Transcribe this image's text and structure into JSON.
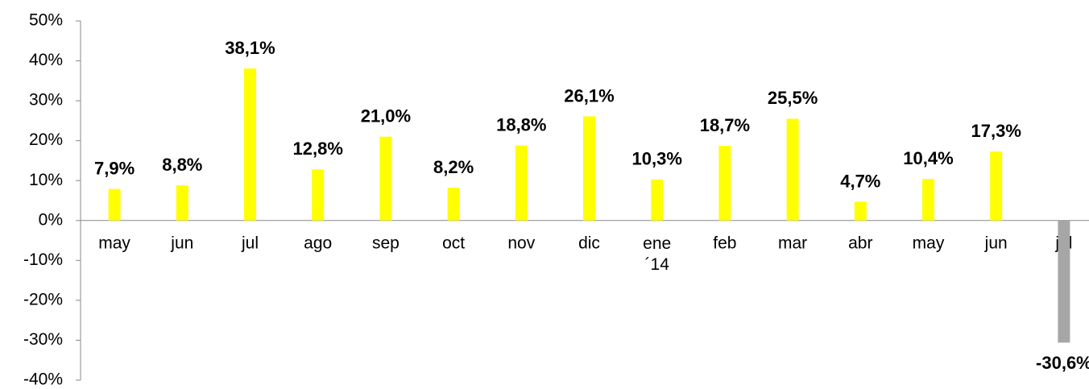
{
  "chart_data": {
    "type": "bar",
    "categories": [
      "may",
      "jun",
      "jul",
      "ago",
      "sep",
      "oct",
      "nov",
      "dic",
      "ene ´14",
      "feb",
      "mar",
      "abr",
      "may",
      "jun",
      "jul"
    ],
    "values": [
      7.9,
      8.8,
      38.1,
      12.8,
      21.0,
      8.2,
      18.8,
      26.1,
      10.3,
      18.7,
      25.5,
      4.7,
      10.4,
      17.3,
      -30.6
    ],
    "value_labels": [
      "7,9%",
      "8,8%",
      "38,1%",
      "12,8%",
      "21,0%",
      "8,2%",
      "18,8%",
      "26,1%",
      "10,3%",
      "18,7%",
      "25,5%",
      "4,7%",
      "10,4%",
      "17,3%",
      "-30,6%"
    ],
    "colors": [
      "#ffff00",
      "#ffff00",
      "#ffff00",
      "#ffff00",
      "#ffff00",
      "#ffff00",
      "#ffff00",
      "#ffff00",
      "#ffff00",
      "#ffff00",
      "#ffff00",
      "#ffff00",
      "#ffff00",
      "#ffff00",
      "#a6a6a6"
    ],
    "ylim": [
      -40,
      50
    ],
    "yticks": [
      {
        "value": -40,
        "label": "-40%"
      },
      {
        "value": -30,
        "label": "-30%"
      },
      {
        "value": -20,
        "label": "-20%"
      },
      {
        "value": -10,
        "label": "-10%"
      },
      {
        "value": 0,
        "label": "0%"
      },
      {
        "value": 10,
        "label": "10%"
      },
      {
        "value": 20,
        "label": "20%"
      },
      {
        "value": 30,
        "label": "30%"
      },
      {
        "value": 40,
        "label": "40%"
      },
      {
        "value": 50,
        "label": "50%"
      }
    ],
    "grid": false
  }
}
